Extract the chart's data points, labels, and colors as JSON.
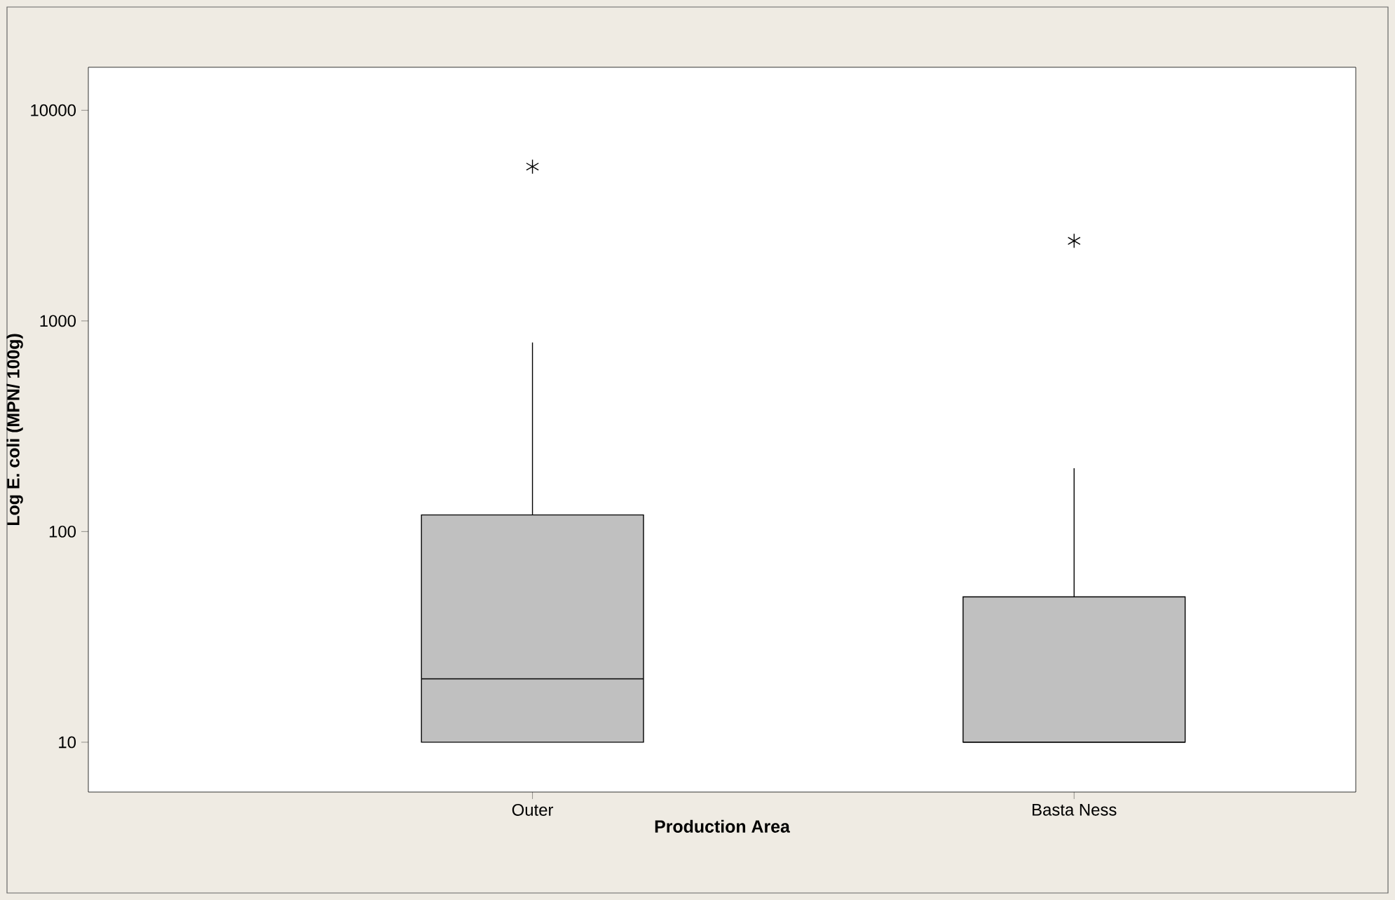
{
  "chart_data": {
    "type": "box",
    "xlabel": "Production Area",
    "ylabel": "Log E. coli (MPN/ 100g)",
    "categories": [
      "Outer",
      "Basta Ness"
    ],
    "series": [
      {
        "color": "#c0c0c0",
        "boxes": [
          {
            "low": 10,
            "q1": 10,
            "median": 20,
            "q3": 120,
            "high": 790,
            "outliers": [
              5400
            ]
          },
          {
            "low": 10,
            "q1": 10,
            "median": 10,
            "q3": 49,
            "high": 200,
            "outliers": [
              2400
            ]
          }
        ]
      }
    ],
    "log": "y",
    "ylim": [
      5.8,
      16000
    ],
    "yticks": [
      10,
      100,
      1000,
      10000
    ],
    "grid": false
  }
}
